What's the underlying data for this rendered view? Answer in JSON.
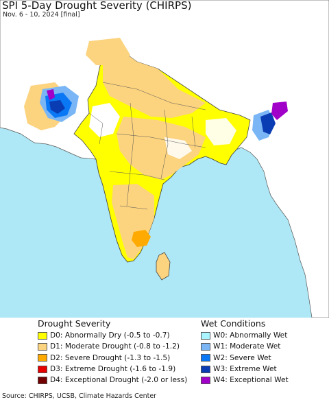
{
  "title": "SPI 5-Day Drought Severity (CHIRPS)",
  "subtitle": "Nov. 6 - 10, 2024 [final]",
  "map": {
    "ocean_color": "#aee7f5",
    "land_color": "#ffffff",
    "border_color": "#444444",
    "out_of_region_color": "#e6e6e6"
  },
  "legend": {
    "drought": {
      "heading": "Drought Severity",
      "items": [
        {
          "label": "D0: Abnormally Dry (-0.5 to -0.7)",
          "color": "#ffff00"
        },
        {
          "label": "D1: Moderate Drought (-0.8 to -1.2)",
          "color": "#fcd37f"
        },
        {
          "label": "D2: Severe Drought (-1.3 to -1.5)",
          "color": "#ffaa00"
        },
        {
          "label": "D3: Extreme Drought (-1.6 to -1.9)",
          "color": "#e60000"
        },
        {
          "label": "D4: Exceptional Drought (-2.0 or less)",
          "color": "#730000"
        }
      ]
    },
    "wet": {
      "heading": "Wet Conditions",
      "items": [
        {
          "label": "W0: Abnormally Wet",
          "color": "#aaf5ff"
        },
        {
          "label": "W1: Moderate Wet",
          "color": "#7ab6f5"
        },
        {
          "label": "W2: Severe Wet",
          "color": "#0a78f5"
        },
        {
          "label": "W3: Extreme Wet",
          "color": "#0a3cb4"
        },
        {
          "label": "W4: Exceptional Wet",
          "color": "#a000c8"
        }
      ]
    }
  },
  "source": "Source: CHIRPS, UCSB, Climate Hazards Center"
}
